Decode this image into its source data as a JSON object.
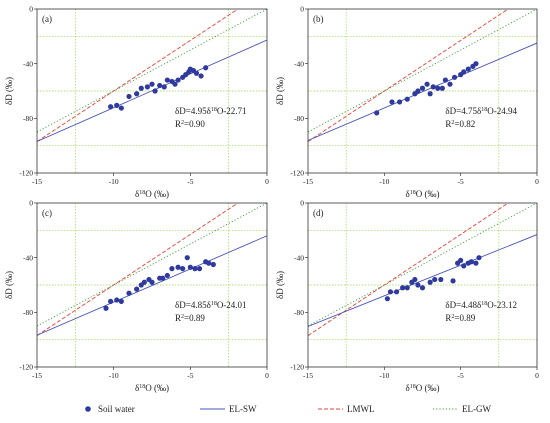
{
  "colors": {
    "soil": "#2f3a9e",
    "el_sw": "#4a56b8",
    "lmwl": "#e8413a",
    "el_gw": "#3f9e3a",
    "grid": "#9cd84e"
  },
  "legend": {
    "soil_water": "Soil water",
    "el_sw": "EL-SW",
    "lmwl": "LMWL",
    "el_gw": "EL-GW"
  },
  "chart_data": [
    {
      "type": "scatter",
      "panel_label": "(a)",
      "xlabel_main": "δ",
      "xlabel_sup": "18",
      "xlabel_rest": "O (‰)",
      "ylabel": "δD (‰)",
      "xlim": [
        -15,
        0
      ],
      "ylim": [
        -120,
        0
      ],
      "xticks": [
        "-15",
        "-10",
        "-5",
        "0"
      ],
      "yticks": [
        "0",
        "-40",
        "-80",
        "-120"
      ],
      "eq_main": "δD=4.95δ",
      "eq_sup": "18",
      "eq_rest": "O-22.71",
      "r2_main": "R",
      "r2_sup": "2",
      "r2_rest": "=0.90",
      "el_sw": {
        "slope": 4.95,
        "intercept": -22.71
      },
      "lmwl": {
        "slope": 7.4,
        "intercept": 14
      },
      "el_gw": {
        "slope": 6.0,
        "intercept": 0
      },
      "points": [
        [
          -10.2,
          -71.5
        ],
        [
          -9.8,
          -70.5
        ],
        [
          -9.5,
          -72.5
        ],
        [
          -9.0,
          -64
        ],
        [
          -8.5,
          -62
        ],
        [
          -8.2,
          -58
        ],
        [
          -7.8,
          -57
        ],
        [
          -7.5,
          -55
        ],
        [
          -7.3,
          -60
        ],
        [
          -7.0,
          -56
        ],
        [
          -6.7,
          -57
        ],
        [
          -6.5,
          -52
        ],
        [
          -6.2,
          -53
        ],
        [
          -6.0,
          -55
        ],
        [
          -5.8,
          -52
        ],
        [
          -5.5,
          -50
        ],
        [
          -5.3,
          -48
        ],
        [
          -5.1,
          -46
        ],
        [
          -5.0,
          -44
        ],
        [
          -4.8,
          -45
        ],
        [
          -4.6,
          -47
        ],
        [
          -4.3,
          -49
        ],
        [
          -4.0,
          -43
        ]
      ]
    },
    {
      "type": "scatter",
      "panel_label": "(b)",
      "xlabel_main": "δ",
      "xlabel_sup": "18",
      "xlabel_rest": "O (‰)",
      "ylabel": "δD (‰)",
      "xlim": [
        -15,
        0
      ],
      "ylim": [
        -120,
        0
      ],
      "xticks": [
        "-15",
        "-10",
        "-5",
        "0"
      ],
      "yticks": [
        "0",
        "-40",
        "-80",
        "-120"
      ],
      "eq_main": "δD=4.75δ",
      "eq_sup": "18",
      "eq_rest": "O-24.94",
      "r2_main": "R",
      "r2_sup": "2",
      "r2_rest": "=0.82",
      "el_sw": {
        "slope": 4.75,
        "intercept": -24.94
      },
      "lmwl": {
        "slope": 7.4,
        "intercept": 14
      },
      "el_gw": {
        "slope": 6.0,
        "intercept": 0
      },
      "points": [
        [
          -10.5,
          -76
        ],
        [
          -9.5,
          -68
        ],
        [
          -9.0,
          -68
        ],
        [
          -8.5,
          -66
        ],
        [
          -8.0,
          -62
        ],
        [
          -7.8,
          -60
        ],
        [
          -7.5,
          -58
        ],
        [
          -7.2,
          -55
        ],
        [
          -7.0,
          -62
        ],
        [
          -6.8,
          -57
        ],
        [
          -6.5,
          -58
        ],
        [
          -6.2,
          -58
        ],
        [
          -6.0,
          -52
        ],
        [
          -5.7,
          -55
        ],
        [
          -5.4,
          -50
        ],
        [
          -5.0,
          -48
        ],
        [
          -4.8,
          -46
        ],
        [
          -4.5,
          -44
        ],
        [
          -4.2,
          -42
        ],
        [
          -4.0,
          -40
        ]
      ]
    },
    {
      "type": "scatter",
      "panel_label": "(c)",
      "xlabel_main": "δ",
      "xlabel_sup": "18",
      "xlabel_rest": "O (‰)",
      "ylabel": "δD (‰)",
      "xlim": [
        -15,
        0
      ],
      "ylim": [
        -120,
        0
      ],
      "xticks": [
        "-15",
        "-10",
        "-5",
        "0"
      ],
      "yticks": [
        "0",
        "-40",
        "-80",
        "-120"
      ],
      "eq_main": "δD=4.85δ",
      "eq_sup": "18",
      "eq_rest": "O-24.01",
      "r2_main": "R",
      "r2_sup": "2",
      "r2_rest": "=0.89",
      "el_sw": {
        "slope": 4.85,
        "intercept": -24.01
      },
      "lmwl": {
        "slope": 7.4,
        "intercept": 14
      },
      "el_gw": {
        "slope": 6.0,
        "intercept": 0
      },
      "points": [
        [
          -10.5,
          -77
        ],
        [
          -10.2,
          -72
        ],
        [
          -9.8,
          -71
        ],
        [
          -9.5,
          -72
        ],
        [
          -9.0,
          -66
        ],
        [
          -8.5,
          -63
        ],
        [
          -8.2,
          -60
        ],
        [
          -8.0,
          -58
        ],
        [
          -7.7,
          -56
        ],
        [
          -7.5,
          -58
        ],
        [
          -7.0,
          -55
        ],
        [
          -6.8,
          -55
        ],
        [
          -6.5,
          -53
        ],
        [
          -6.2,
          -48
        ],
        [
          -5.8,
          -47
        ],
        [
          -5.5,
          -48
        ],
        [
          -5.2,
          -40
        ],
        [
          -5.0,
          -47
        ],
        [
          -4.7,
          -48
        ],
        [
          -4.4,
          -48
        ],
        [
          -4.0,
          -43
        ],
        [
          -3.8,
          -44
        ],
        [
          -3.5,
          -45
        ]
      ]
    },
    {
      "type": "scatter",
      "panel_label": "(d)",
      "xlabel_main": "δ",
      "xlabel_sup": "18",
      "xlabel_rest": "O (‰)",
      "ylabel": "δD (‰)",
      "xlim": [
        -15,
        0
      ],
      "ylim": [
        -120,
        0
      ],
      "xticks": [
        "-15",
        "-10",
        "-5",
        "0"
      ],
      "yticks": [
        "0",
        "-40",
        "-80",
        "-120"
      ],
      "eq_main": "δD=4.48δ",
      "eq_sup": "18",
      "eq_rest": "O-23.12",
      "r2_main": "R",
      "r2_sup": "2",
      "r2_rest": "=0.89",
      "el_sw": {
        "slope": 4.48,
        "intercept": -23.12
      },
      "lmwl": {
        "slope": 7.4,
        "intercept": 14
      },
      "el_gw": {
        "slope": 6.0,
        "intercept": 0
      },
      "points": [
        [
          -9.8,
          -70
        ],
        [
          -9.6,
          -65
        ],
        [
          -9.2,
          -65
        ],
        [
          -8.8,
          -62
        ],
        [
          -8.5,
          -62
        ],
        [
          -8.2,
          -58
        ],
        [
          -8.0,
          -56
        ],
        [
          -7.8,
          -60
        ],
        [
          -7.5,
          -62
        ],
        [
          -7.0,
          -58
        ],
        [
          -6.7,
          -56
        ],
        [
          -6.3,
          -56
        ],
        [
          -5.5,
          -57
        ],
        [
          -5.2,
          -44
        ],
        [
          -5.0,
          -42
        ],
        [
          -4.8,
          -46
        ],
        [
          -4.5,
          -44
        ],
        [
          -4.3,
          -43
        ],
        [
          -4.0,
          -44
        ],
        [
          -3.8,
          -40
        ]
      ]
    }
  ]
}
